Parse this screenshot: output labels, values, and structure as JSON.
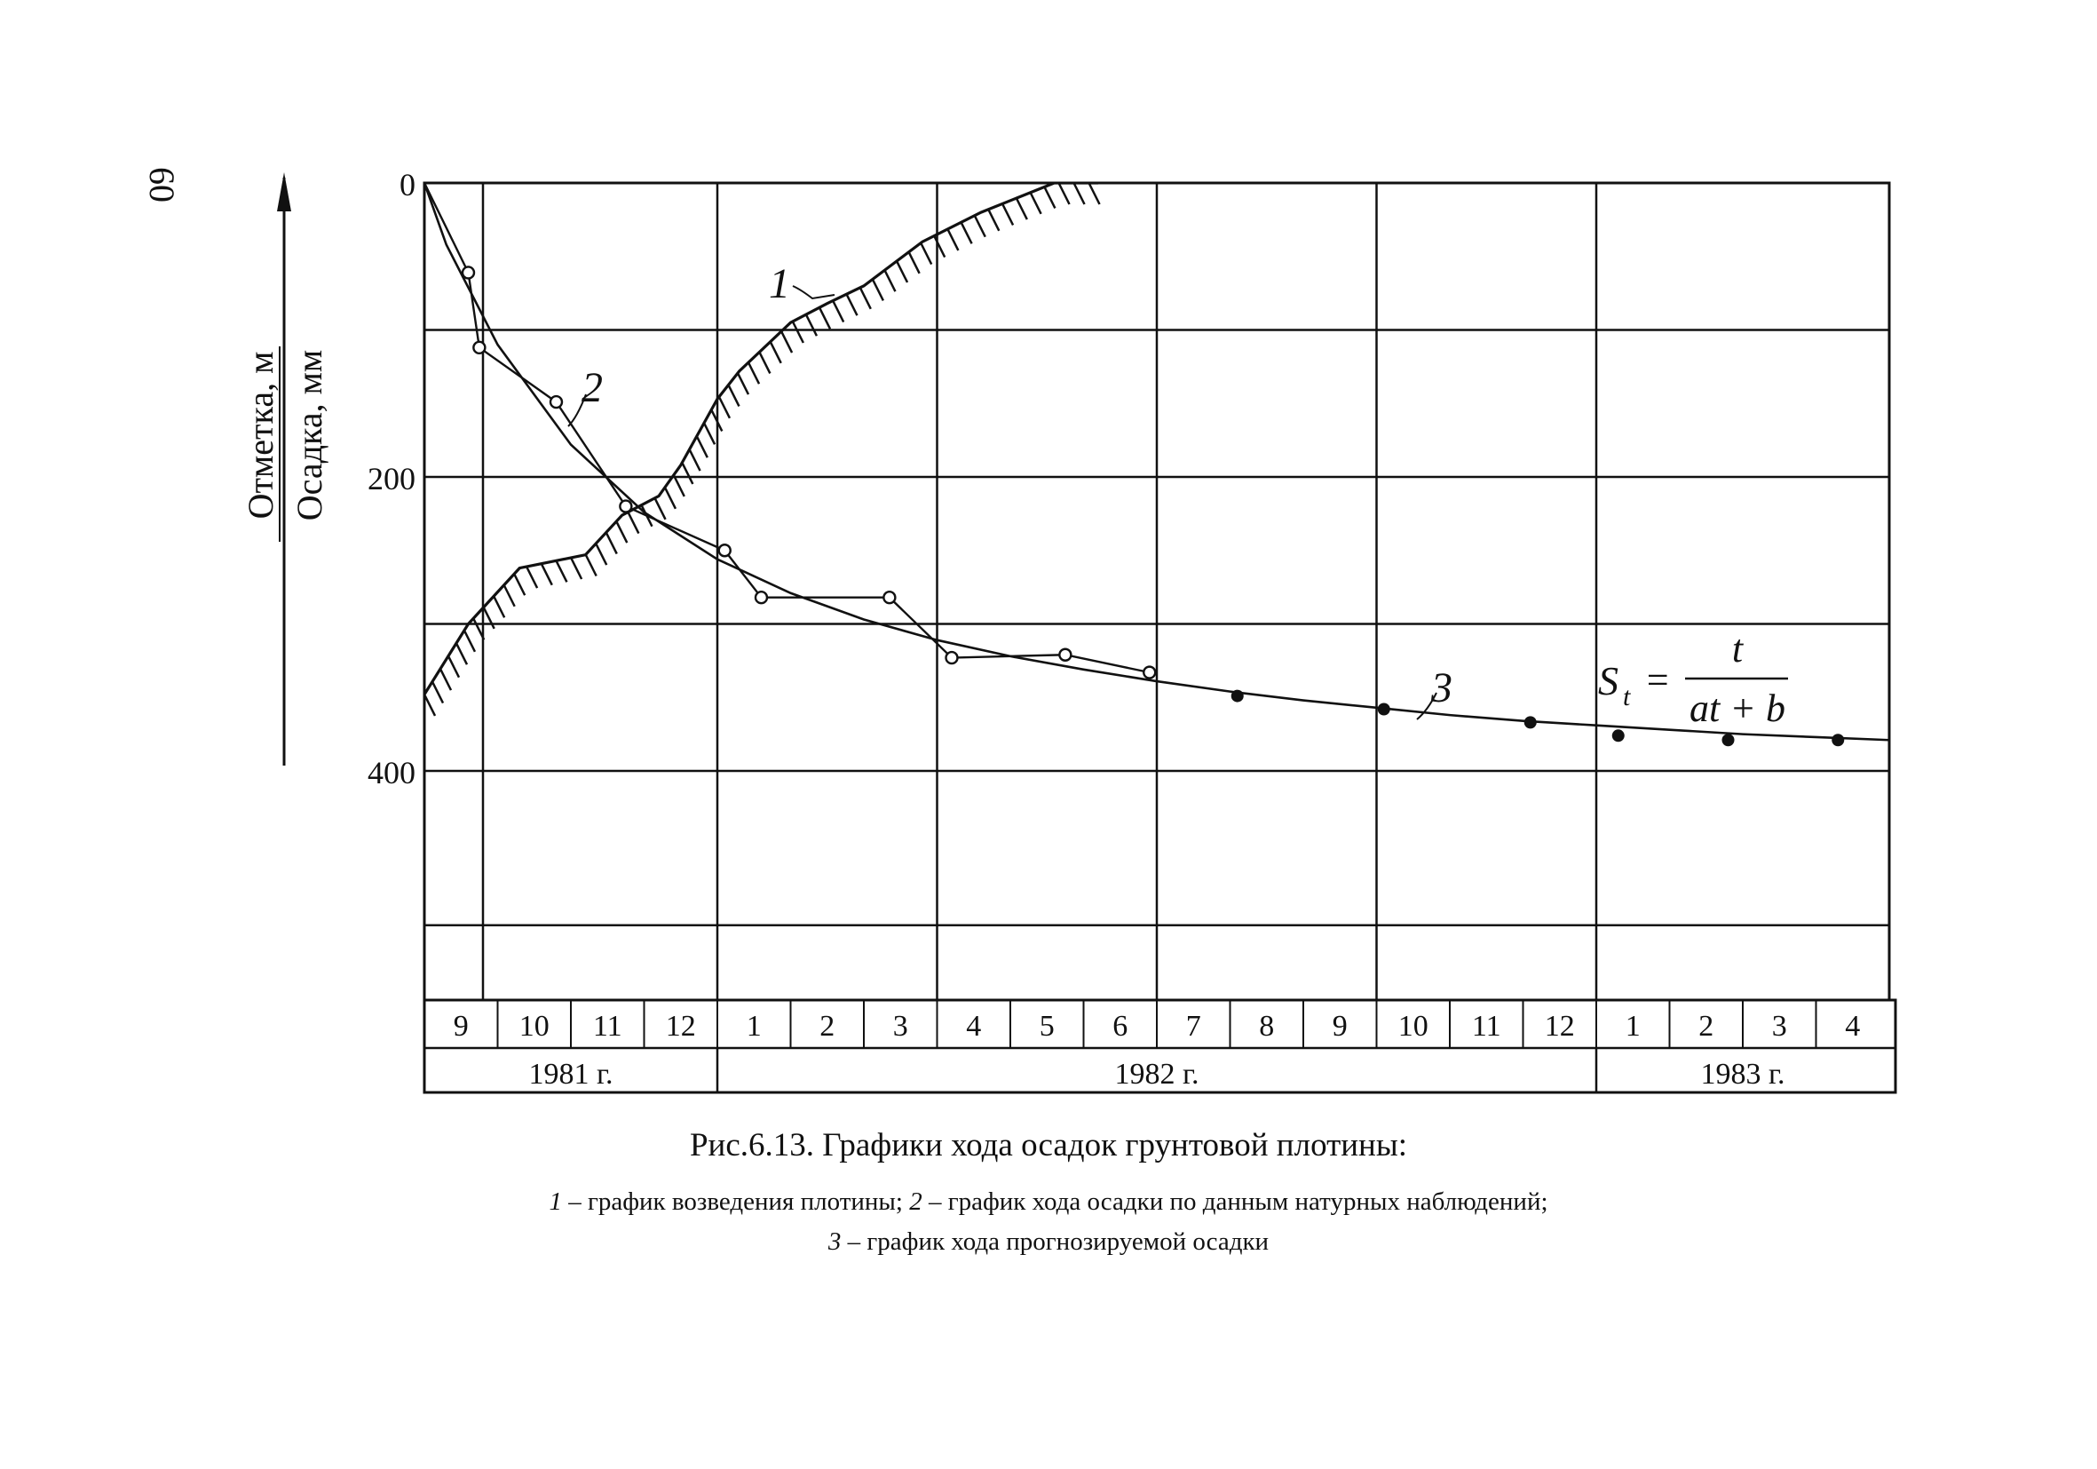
{
  "page_number": "60",
  "caption": "Рис.6.13. Графики хода осадок грунтовой плотины:",
  "legend_lines": [
    {
      "num": "1",
      "text": " – график возведения плотины; ",
      "num2": "2",
      "text2": " – график хода осадки по данным натурных наблюдений;"
    },
    {
      "num": "3",
      "text": " – график хода прогнозируемой осадки"
    }
  ],
  "chart_data": {
    "type": "line",
    "y_axis": {
      "label_top": "Отметка, м",
      "label_bottom": "Осадка, мм",
      "ticks": [
        "0",
        "200",
        "400"
      ],
      "tick_values": [
        0,
        200,
        400
      ],
      "inverted": true,
      "ylim": [
        0,
        560
      ]
    },
    "x_axis": {
      "unit": "month index starting at 9 = September 1981",
      "xlim": [
        9,
        29
      ],
      "months": [
        "9",
        "10",
        "11",
        "12",
        "1",
        "2",
        "3",
        "4",
        "5",
        "6",
        "7",
        "8",
        "9",
        "10",
        "11",
        "12",
        "1",
        "2",
        "3",
        "4"
      ],
      "years": [
        {
          "label": "1981 г.",
          "from": 9,
          "to": 13
        },
        {
          "label": "1982 г.",
          "from": 13,
          "to": 25
        },
        {
          "label": "1983 г.",
          "from": 25,
          "to": 29
        }
      ]
    },
    "grid": true,
    "series": [
      {
        "name": "1",
        "style": "hatched",
        "x": [
          9,
          9.6,
          10.3,
          11.2,
          11.7,
          12.2,
          12.5,
          13.0,
          13.3,
          14.0,
          14.5,
          15.0,
          15.8,
          16.6,
          17.6,
          18.2
        ],
        "y": [
          348,
          300,
          262,
          253,
          226,
          213,
          192,
          147,
          128,
          95,
          82,
          70,
          40,
          20,
          0,
          0
        ]
      },
      {
        "name": "2",
        "style": "observed",
        "x": [
          9,
          9.6,
          9.75,
          10.8,
          11.75,
          13.1,
          13.6,
          15.35,
          16.2,
          17.75,
          18.9
        ],
        "y": [
          0,
          61,
          112,
          149,
          220,
          250,
          282,
          282,
          323,
          321,
          333
        ],
        "markers": "open-circle"
      },
      {
        "name": "3",
        "style": "forecast",
        "formula_lhs": "S",
        "formula_sub": "t",
        "formula_eq": "=",
        "formula_num": "t",
        "formula_den": "at + b",
        "x": [
          9,
          9.3,
          10,
          11,
          12,
          13,
          14,
          15,
          16,
          17,
          18,
          19,
          20,
          21,
          22,
          23,
          24,
          25,
          26,
          27,
          28,
          29
        ],
        "y": [
          0,
          42,
          110,
          178,
          224,
          256,
          279,
          297,
          311,
          322,
          331,
          339,
          346,
          352,
          357,
          362,
          366,
          369,
          372,
          375,
          377,
          379
        ],
        "marker_x": [
          20.1,
          22.1,
          24.1,
          25.3,
          26.8,
          28.3
        ],
        "marker_y": [
          349,
          358,
          367,
          376,
          379,
          379
        ],
        "markers": "filled-circle"
      }
    ]
  }
}
